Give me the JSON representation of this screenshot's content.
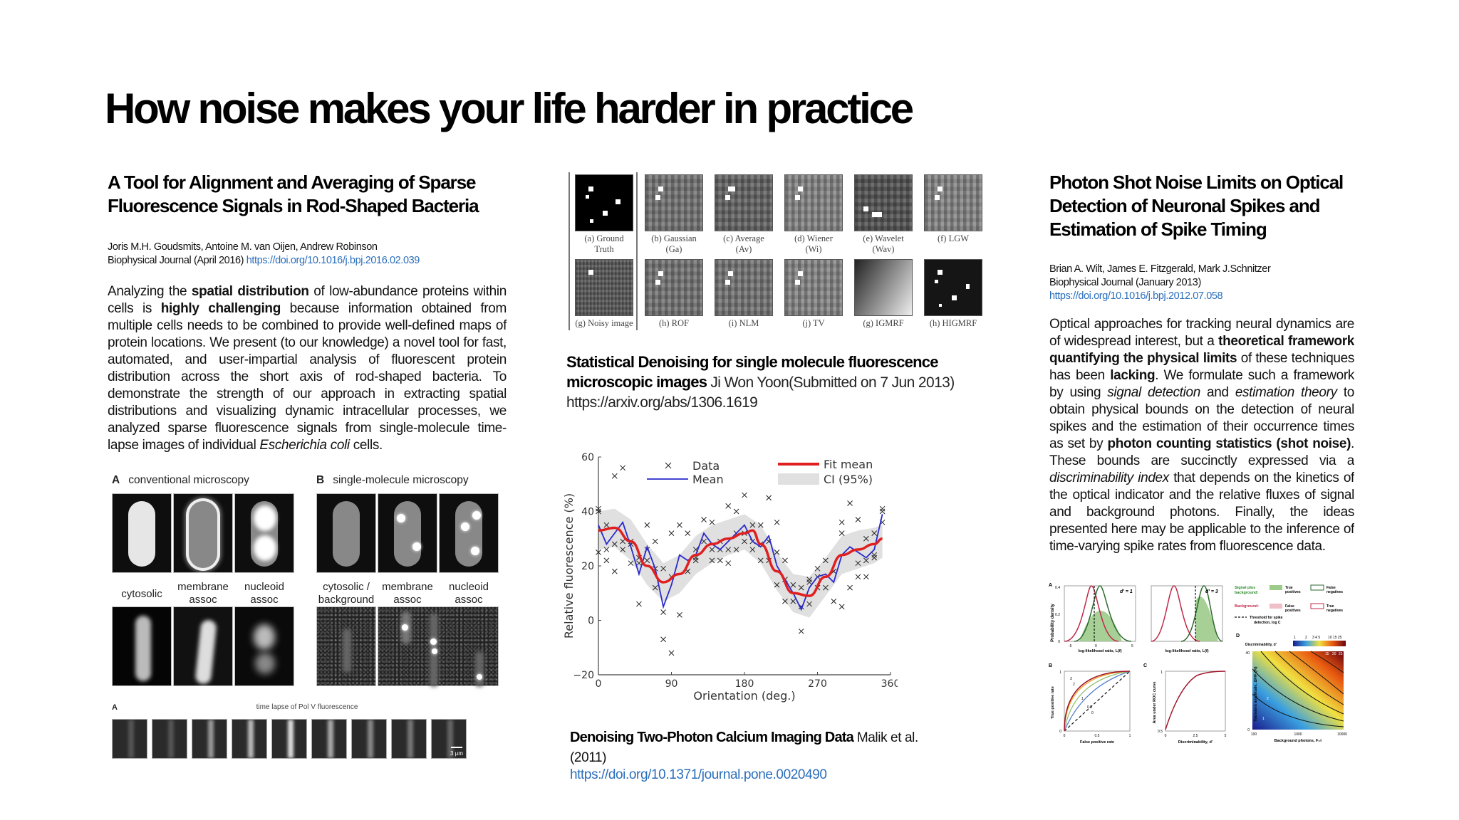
{
  "slide": {
    "title": "How noise makes your life harder in practice"
  },
  "column1": {
    "paper_title": "A Tool for Alignment and Averaging of Sparse Fluorescence Signals in Rod-Shaped Bacteria",
    "authors": "Joris M.H. Goudsmits, Antoine M. van Oijen, Andrew Robinson",
    "journal": "Biophysical Journal (April 2016)",
    "doi": "https://doi.org/10.1016/j.bpj.2016.02.039",
    "abstract_segments": [
      {
        "text": "Analyzing the ",
        "style": "normal"
      },
      {
        "text": "spatial distribution",
        "style": "bold"
      },
      {
        "text": " of low-abundance proteins within cells is ",
        "style": "normal"
      },
      {
        "text": "highly challenging",
        "style": "bold"
      },
      {
        "text": " because information obtained from multiple cells needs to be combined to provide well-defined maps of protein locations. We present (to our knowledge) a novel tool for fast, automated, and user-impartial analysis of fluorescent protein distribution across the short axis of rod-shaped bacteria. To demonstrate the strength of our approach in extracting spatial distributions and visualizing dynamic intracellular processes, we analyzed sparse fluorescence signals from single-molecule time-lapse images of individual ",
        "style": "normal"
      },
      {
        "text": "Escherichia coli",
        "style": "italic"
      },
      {
        "text": " cells.",
        "style": "normal"
      }
    ],
    "figure": {
      "panel_a_letter": "A",
      "panel_a_title": "conventional microscopy",
      "panel_b_letter": "B",
      "panel_b_title": "single-molecule microscopy",
      "a_captions": [
        "cytosolic",
        "membrane\nassoc",
        "nucleoid\nassoc"
      ],
      "b_captions": [
        "cytosolic /\nbackground",
        "membrane\nassoc",
        "nucleoid\nassoc"
      ]
    },
    "timelapse": {
      "letter": "A",
      "title": "time lapse of Pol V fluorescence",
      "frames": 9,
      "scale_bar": "3 µm"
    }
  },
  "column2": {
    "denoise_grid": {
      "top_row": [
        "(a) Ground\nTruth",
        "(b) Gaussian\n(Ga)",
        "(c) Average\n(Av)",
        "(d) Wiener\n(Wi)",
        "(e) Wavelet\n(Wav)",
        "(f) LGW"
      ],
      "bottom_row": [
        "(g) Noisy image",
        "(h) ROF",
        "(i) NLM",
        "(j) TV",
        "(g) IGMRF",
        "(h) HIGMRF"
      ]
    },
    "paper1_title": "Statistical Denoising for single molecule fluorescence microscopic images",
    "paper1_rest": " Ji Won Yoon(Submitted on 7 Jun 2013) ",
    "paper1_link": "https://arxiv.org/abs/1306.1619",
    "paper2_title": "Denoising Two-Photon Calcium Imaging Data",
    "paper2_rest": " Malik et al. (2011)",
    "paper2_link": "https://doi.org/10.1371/journal.pone.0020490"
  },
  "column3": {
    "paper_title": "Photon Shot Noise Limits on Optical Detection of Neuronal Spikes and Estimation of Spike Timing",
    "authors": "Brian A. Wilt, James E. Fitzgerald, Mark J.Schnitzer",
    "journal": "Biophysical Journal (January 2013)",
    "doi": "https://doi.org/10.1016/j.bpj.2012.07.058",
    "abstract_segments": [
      {
        "text": "Optical approaches for tracking neural dynamics are of widespread interest, but a ",
        "style": "normal"
      },
      {
        "text": "theoretical framework quantifying the physical limits",
        "style": "bold"
      },
      {
        "text": " of these techniques has been ",
        "style": "normal"
      },
      {
        "text": "lacking",
        "style": "bold"
      },
      {
        "text": ". We formulate such a framework by using ",
        "style": "normal"
      },
      {
        "text": "signal detection",
        "style": "italic"
      },
      {
        "text": " and ",
        "style": "normal"
      },
      {
        "text": "estimation theory",
        "style": "italic"
      },
      {
        "text": " to obtain physical bounds on the detection of neural spikes and the estimation of their occurrence times as set by ",
        "style": "normal"
      },
      {
        "text": "photon counting statistics (shot noise)",
        "style": "bold"
      },
      {
        "text": ". These bounds are succinctly expressed via a ",
        "style": "normal"
      },
      {
        "text": "discriminability index",
        "style": "italic"
      },
      {
        "text": " that depends on the kinetics of the optical indicator and the relative fluxes of signal and background photons.  Finally, the ideas presented here may be applicable to the inference of time-varying spike rates from fluorescence data.",
        "style": "normal"
      }
    ],
    "figure": {
      "panel_a": {
        "letter": "A",
        "d1_label": "d' = 1",
        "d3_label": "d' = 3",
        "ylabel": "Probability density",
        "xlabel": "log-likelihood ratio, L(f)",
        "yticks": [
          "0.4",
          "0.2",
          "0"
        ],
        "xticks": [
          "-5",
          "0",
          "5"
        ]
      },
      "legend": {
        "signal_label": "Signal plus background:",
        "true_pos": "True positives",
        "false_neg": "False negatives",
        "background_label": "Background:",
        "false_pos": "False positives",
        "true_neg": "True negatives",
        "threshold": "Threshold for spike detection, log C"
      },
      "panel_b": {
        "letter": "B",
        "ylabel": "True positive rate",
        "xlabel": "False positive rate",
        "yticks": [
          "1",
          "0.8",
          "0.6",
          "0.4",
          "0.2",
          "0"
        ],
        "xticks": [
          "0",
          "0.5",
          "1"
        ],
        "curve_labels": [
          "3",
          "2",
          "1",
          "0.5",
          "0"
        ]
      },
      "panel_c": {
        "letter": "C",
        "ylabel": "Area under ROC curve",
        "xlabel": "Discriminability, d'",
        "yticks": [
          "1",
          "0.9",
          "0.8",
          "0.7",
          "0.6",
          "0.5"
        ],
        "xticks": [
          "0",
          "1",
          "2",
          "3",
          "4",
          "5"
        ]
      },
      "panel_d": {
        "letter": "D",
        "colorbar_label": "Discriminability, d'",
        "colorbar_ticks": [
          "1",
          "2",
          "3 4 5",
          "10 15 25"
        ],
        "ylabel": "Transient amplitude, ΔF/F (%)",
        "xlabel": "Background photons, F₀τ",
        "yticks": [
          "40",
          "30",
          "20",
          "10",
          "0"
        ],
        "xticks": [
          "100",
          "1000",
          "10000"
        ],
        "contour_labels": [
          "1",
          "2",
          "3",
          "4",
          "5",
          "10",
          "15",
          "20",
          "25"
        ]
      }
    }
  },
  "chart_data": {
    "type": "scatter",
    "title": "",
    "xlabel": "Orientation (deg.)",
    "ylabel": "Relative fluorescence (%)",
    "xlim": [
      0,
      360
    ],
    "ylim": [
      -20,
      60
    ],
    "xticks": [
      0,
      90,
      180,
      270,
      360
    ],
    "yticks": [
      -20,
      0,
      20,
      40,
      60
    ],
    "grid": false,
    "legend": {
      "position": "top",
      "entries": [
        "Data",
        "Mean",
        "Fit mean",
        "CI (95%)"
      ]
    },
    "series": [
      {
        "name": "Data",
        "marker": "x",
        "color": "#222222",
        "points": [
          [
            0,
            41
          ],
          [
            0,
            40
          ],
          [
            0,
            25
          ],
          [
            10,
            35
          ],
          [
            10,
            26
          ],
          [
            10,
            22
          ],
          [
            20,
            53
          ],
          [
            20,
            28
          ],
          [
            20,
            18
          ],
          [
            30,
            56
          ],
          [
            30,
            29
          ],
          [
            30,
            26
          ],
          [
            40,
            29
          ],
          [
            40,
            28
          ],
          [
            40,
            21
          ],
          [
            50,
            23
          ],
          [
            50,
            21
          ],
          [
            50,
            6
          ],
          [
            60,
            35
          ],
          [
            60,
            22
          ],
          [
            60,
            26
          ],
          [
            70,
            29
          ],
          [
            70,
            19
          ],
          [
            70,
            12
          ],
          [
            80,
            19
          ],
          [
            80,
            3
          ],
          [
            80,
            -7
          ],
          [
            90,
            32
          ],
          [
            90,
            16
          ],
          [
            90,
            -12
          ],
          [
            100,
            35
          ],
          [
            100,
            2
          ],
          [
            110,
            32
          ],
          [
            110,
            18
          ],
          [
            120,
            26
          ],
          [
            120,
            23
          ],
          [
            120,
            22
          ],
          [
            130,
            37
          ],
          [
            130,
            29
          ],
          [
            140,
            36
          ],
          [
            140,
            26
          ],
          [
            140,
            22
          ],
          [
            150,
            29
          ],
          [
            150,
            26
          ],
          [
            150,
            22
          ],
          [
            160,
            42
          ],
          [
            160,
            26
          ],
          [
            160,
            21
          ],
          [
            170,
            40
          ],
          [
            170,
            32
          ],
          [
            170,
            26
          ],
          [
            180,
            46
          ],
          [
            180,
            32
          ],
          [
            180,
            29
          ],
          [
            190,
            35
          ],
          [
            190,
            29
          ],
          [
            190,
            26
          ],
          [
            200,
            35
          ],
          [
            200,
            28
          ],
          [
            200,
            22
          ],
          [
            210,
            45
          ],
          [
            210,
            29
          ],
          [
            210,
            22
          ],
          [
            220,
            36
          ],
          [
            220,
            25
          ],
          [
            220,
            13
          ],
          [
            230,
            22
          ],
          [
            230,
            15
          ],
          [
            230,
            7
          ],
          [
            240,
            13
          ],
          [
            240,
            7
          ],
          [
            250,
            12
          ],
          [
            250,
            5
          ],
          [
            250,
            -4
          ],
          [
            260,
            15
          ],
          [
            260,
            14
          ],
          [
            260,
            6
          ],
          [
            270,
            19
          ],
          [
            270,
            16
          ],
          [
            270,
            12
          ],
          [
            280,
            22
          ],
          [
            280,
            12
          ],
          [
            290,
            18
          ],
          [
            290,
            7
          ],
          [
            300,
            36
          ],
          [
            300,
            32
          ],
          [
            300,
            5
          ],
          [
            310,
            43
          ],
          [
            310,
            12
          ],
          [
            320,
            37
          ],
          [
            320,
            21
          ],
          [
            320,
            16
          ],
          [
            330,
            30
          ],
          [
            330,
            22
          ],
          [
            330,
            16
          ],
          [
            340,
            32
          ],
          [
            340,
            24
          ],
          [
            340,
            23
          ],
          [
            350,
            41
          ],
          [
            350,
            40
          ],
          [
            350,
            36
          ]
        ]
      },
      {
        "name": "Mean",
        "type": "line",
        "color": "#2a2acc",
        "x": [
          0,
          10,
          20,
          30,
          40,
          50,
          60,
          70,
          80,
          90,
          100,
          110,
          120,
          130,
          140,
          150,
          160,
          170,
          180,
          190,
          200,
          210,
          220,
          230,
          240,
          250,
          260,
          270,
          280,
          290,
          300,
          310,
          320,
          330,
          340,
          350
        ],
        "values": [
          35,
          28,
          32,
          36,
          27,
          17,
          27,
          19,
          5,
          13,
          24,
          22,
          24,
          32,
          28,
          26,
          29,
          32,
          35,
          29,
          27,
          31,
          20,
          15,
          10,
          4,
          12,
          16,
          17,
          14,
          24,
          27,
          25,
          23,
          26,
          39
        ]
      },
      {
        "name": "Fit mean",
        "type": "line",
        "color": "#e02020",
        "x": [
          0,
          20,
          40,
          60,
          80,
          100,
          120,
          140,
          160,
          180,
          190,
          200,
          220,
          240,
          260,
          280,
          300,
          320,
          340,
          350
        ],
        "values": [
          33,
          34,
          29,
          20,
          14,
          17,
          24,
          28,
          30,
          32,
          33,
          28,
          18,
          10,
          9,
          16,
          24,
          26,
          28,
          30
        ]
      },
      {
        "name": "CI (95%)",
        "type": "band",
        "color": "#e0e0e0",
        "x": [
          0,
          20,
          40,
          60,
          80,
          100,
          120,
          140,
          160,
          180,
          200,
          220,
          240,
          260,
          280,
          300,
          320,
          340,
          350
        ],
        "lower": [
          26,
          27,
          22,
          13,
          7,
          10,
          17,
          21,
          24,
          26,
          21,
          11,
          3,
          1,
          9,
          17,
          19,
          21,
          23
        ],
        "upper": [
          40,
          41,
          37,
          28,
          21,
          24,
          31,
          35,
          37,
          39,
          35,
          25,
          17,
          16,
          23,
          31,
          33,
          34,
          35
        ]
      }
    ]
  }
}
